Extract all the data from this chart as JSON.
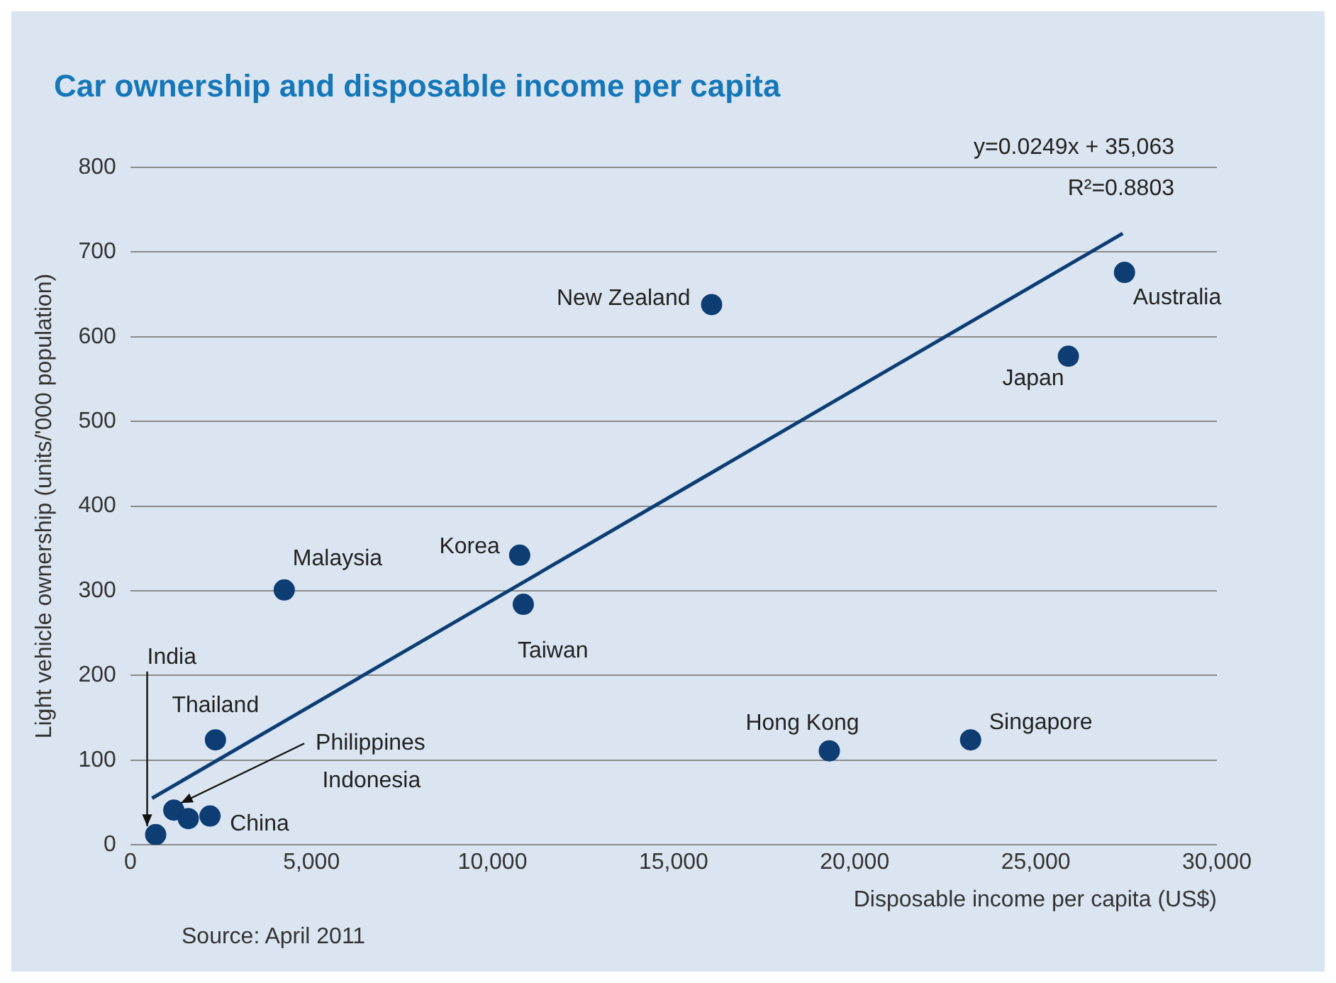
{
  "chart_data": {
    "type": "scatter",
    "title": "Car ownership and disposable income per capita",
    "xlabel": "Disposable income per capita (US$)",
    "ylabel": "Light vehicle ownership (units/'000 population)",
    "xlim": [
      0,
      30000
    ],
    "xticks": [
      {
        "value": 0,
        "label": "0"
      },
      {
        "value": 5000,
        "label": "5,000"
      },
      {
        "value": 10000,
        "label": "10,000"
      },
      {
        "value": 15000,
        "label": "15,000"
      },
      {
        "value": 20000,
        "label": "20,000"
      },
      {
        "value": 25000,
        "label": "25,000"
      },
      {
        "value": 30000,
        "label": "30,000"
      }
    ],
    "ylim": [
      0,
      800
    ],
    "yticks": [
      0,
      100,
      200,
      300,
      400,
      500,
      600,
      700,
      800
    ],
    "grid": "y",
    "legend": false,
    "marker": "circle",
    "series": [
      {
        "color": "#0d3d73",
        "x": [
          700,
          1200,
          1600,
          2200,
          2350,
          4250,
          10750,
          10850,
          16050,
          19300,
          23200,
          25900,
          27450
        ],
        "values": [
          12,
          41,
          31,
          34,
          124,
          301,
          342,
          284,
          638,
          111,
          124,
          577,
          676
        ]
      },
      {
        "type": "line",
        "marker": "none",
        "color": "#0d3d73",
        "x": [
          600,
          27400
        ],
        "values": [
          55,
          722
        ]
      }
    ],
    "annotations": [
      {
        "text": "India",
        "x": 700,
        "y": 12
      },
      {
        "text": "Philippines",
        "x": 1200,
        "y": 41
      },
      {
        "text": "China",
        "x": 2200,
        "y": 34
      },
      {
        "text": "Thailand",
        "x": 2350,
        "y": 124
      },
      {
        "text": "Malaysia",
        "x": 4250,
        "y": 301
      },
      {
        "text": "Korea",
        "x": 10750,
        "y": 342
      },
      {
        "text": "Taiwan",
        "x": 10850,
        "y": 284
      },
      {
        "text": "New Zealand",
        "x": 16050,
        "y": 638
      },
      {
        "text": "Hong Kong",
        "x": 19300,
        "y": 111
      },
      {
        "text": "Singapore",
        "x": 23200,
        "y": 124
      },
      {
        "text": "Japan",
        "x": 25900,
        "y": 577
      },
      {
        "text": "Australia",
        "x": 27450,
        "y": 676
      },
      "y=0.0249x + 35,063",
      "R²=0.8803",
      "Indonesia",
      "Source: April 2011"
    ]
  }
}
